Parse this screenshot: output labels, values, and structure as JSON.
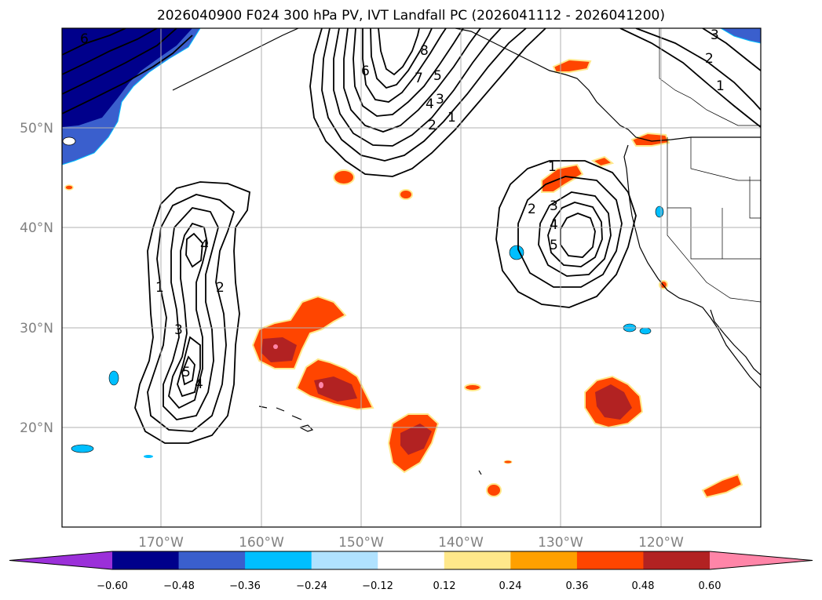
{
  "title": "2026040900 F024 300 hPa PV, IVT Landfall PC (2026041112 - 2026041200)",
  "map": {
    "lat_ticks": [
      "50°N",
      "40°N",
      "30°N",
      "20°N"
    ],
    "lon_ticks": [
      "170°W",
      "160°W",
      "150°W",
      "140°W",
      "130°W",
      "120°W"
    ],
    "contour_labels": {
      "west_trough": [
        "1",
        "2",
        "3",
        "4",
        "5",
        "4"
      ],
      "north_ridge": [
        "1",
        "2",
        "3",
        "4",
        "5",
        "6",
        "7",
        "8"
      ],
      "east_low": [
        "1",
        "2",
        "3",
        "4",
        "5"
      ],
      "northeast": [
        "1",
        "2",
        "3"
      ],
      "northwest": [
        "6"
      ]
    }
  },
  "colorbar": {
    "ticks": [
      "−0.60",
      "−0.48",
      "−0.36",
      "−0.24",
      "−0.12",
      "0.12",
      "0.24",
      "0.36",
      "0.48",
      "0.60"
    ],
    "colors": [
      "#9b30d9",
      "#00008b",
      "#3a5fcd",
      "#00bfff",
      "#b0e2ff",
      "#ffffff",
      "#ffe88a",
      "#ffa000",
      "#ff4500",
      "#b22222",
      "#ff85a8"
    ]
  }
}
